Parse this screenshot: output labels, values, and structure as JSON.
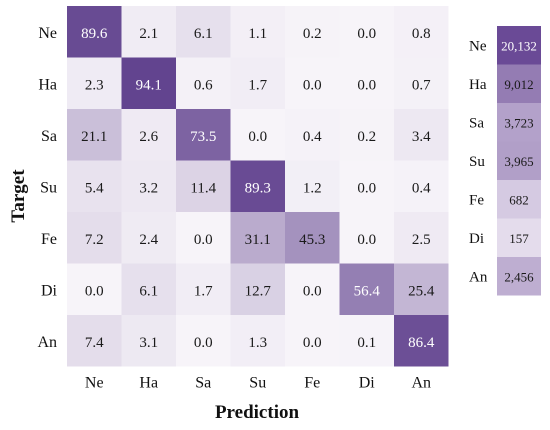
{
  "chart_data": [
    {
      "type": "heatmap",
      "title": "",
      "xlabel": "Prediction",
      "ylabel": "Target",
      "x_categories": [
        "Ne",
        "Ha",
        "Sa",
        "Su",
        "Fe",
        "Di",
        "An"
      ],
      "y_categories": [
        "Ne",
        "Ha",
        "Sa",
        "Su",
        "Fe",
        "Di",
        "An"
      ],
      "values": [
        [
          89.6,
          2.1,
          6.1,
          1.1,
          0.2,
          0.0,
          0.8
        ],
        [
          2.3,
          94.1,
          0.6,
          1.7,
          0.0,
          0.0,
          0.7
        ],
        [
          21.1,
          2.6,
          73.5,
          0.0,
          0.4,
          0.2,
          3.4
        ],
        [
          5.4,
          3.2,
          11.4,
          89.3,
          1.2,
          0.0,
          0.4
        ],
        [
          7.2,
          2.4,
          0.0,
          31.1,
          45.3,
          0.0,
          2.5
        ],
        [
          0.0,
          6.1,
          1.7,
          12.7,
          0.0,
          56.4,
          25.4
        ],
        [
          7.4,
          3.1,
          0.0,
          1.3,
          0.0,
          0.1,
          86.4
        ]
      ],
      "value_labels": [
        [
          "89.6",
          "2.1",
          "6.1",
          "1.1",
          "0.2",
          "0.0",
          "0.8"
        ],
        [
          "2.3",
          "94.1",
          "0.6",
          "1.7",
          "0.0",
          "0.0",
          "0.7"
        ],
        [
          "21.1",
          "2.6",
          "73.5",
          "0.0",
          "0.4",
          "0.2",
          "3.4"
        ],
        [
          "5.4",
          "3.2",
          "11.4",
          "89.3",
          "1.2",
          "0.0",
          "0.4"
        ],
        [
          "7.2",
          "2.4",
          "0.0",
          "31.1",
          "45.3",
          "0.0",
          "2.5"
        ],
        [
          "0.0",
          "6.1",
          "1.7",
          "12.7",
          "0.0",
          "56.4",
          "25.4"
        ],
        [
          "7.4",
          "3.1",
          "0.0",
          "1.3",
          "0.0",
          "0.1",
          "86.4"
        ]
      ],
      "color_low": "#f7f4f9",
      "color_high": "#5b3b8a",
      "vmax": 100
    },
    {
      "type": "heatmap",
      "title": "",
      "y_categories": [
        "Ne",
        "Ha",
        "Sa",
        "Su",
        "Fe",
        "Di",
        "An"
      ],
      "values": [
        20132,
        9012,
        3723,
        3965,
        682,
        157,
        2456
      ],
      "value_labels": [
        "20,132",
        "9,012",
        "3,723",
        "3,965",
        "682",
        "157",
        "2,456"
      ],
      "color_low": "#f3eef7",
      "color_high": "#6a4a96"
    }
  ]
}
